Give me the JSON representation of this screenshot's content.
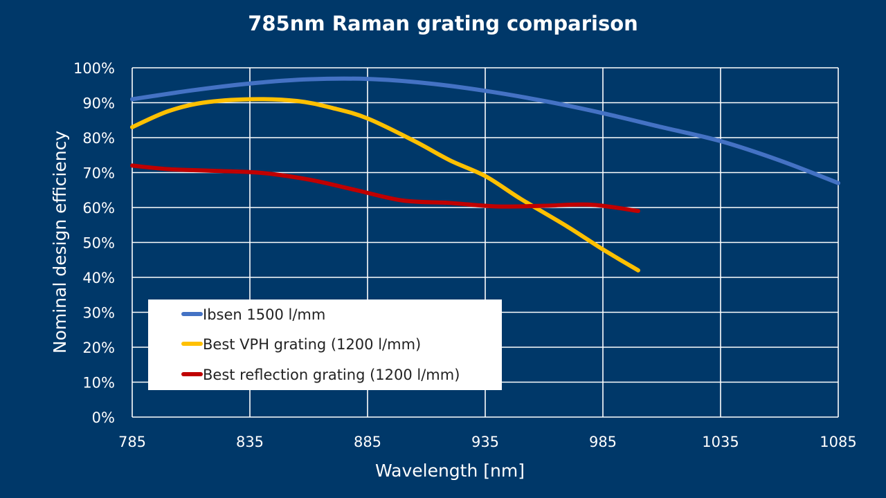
{
  "chart_data": {
    "type": "line",
    "title": "785nm Raman grating comparison",
    "xlabel": "Wavelength [nm]",
    "ylabel": "Nominal design efficiency",
    "xlim": [
      785,
      1085
    ],
    "ylim": [
      0,
      100
    ],
    "x_ticks": [
      785,
      835,
      885,
      935,
      985,
      1035,
      1085
    ],
    "x_tick_labels": [
      "785",
      "835",
      "885",
      "935",
      "985",
      "1035",
      "1085"
    ],
    "y_ticks": [
      0,
      10,
      20,
      30,
      40,
      50,
      60,
      70,
      80,
      90,
      100
    ],
    "y_tick_labels": [
      "0%",
      "10%",
      "20%",
      "30%",
      "40%",
      "50%",
      "60%",
      "70%",
      "80%",
      "90%",
      "100%"
    ],
    "grid": true,
    "legend_position": "bottom-left",
    "series": [
      {
        "name": "Ibsen 1500 l/mm",
        "color": "#4472C4",
        "x": [
          785,
          810,
          835,
          860,
          885,
          910,
          935,
          960,
          985,
          1010,
          1035,
          1060,
          1085
        ],
        "y": [
          91,
          93.5,
          95.5,
          96.7,
          96.8,
          95.6,
          93.4,
          90.5,
          87,
          83,
          79,
          73.5,
          67
        ]
      },
      {
        "name": "Best VPH grating (1200 l/mm)",
        "color": "#FFC000",
        "x": [
          785,
          800,
          815,
          835,
          855,
          870,
          885,
          905,
          920,
          935,
          950,
          970,
          985,
          1000
        ],
        "y": [
          83,
          87.5,
          90,
          91,
          90.5,
          88.5,
          85.5,
          79,
          73.5,
          69,
          62.5,
          54.5,
          48,
          42
        ]
      },
      {
        "name": "Best reflection grating (1200 l/mm)",
        "color": "#C00000",
        "x": [
          785,
          800,
          820,
          840,
          860,
          880,
          900,
          920,
          940,
          960,
          980,
          1000
        ],
        "y": [
          72,
          71,
          70.5,
          69.9,
          68,
          65,
          62,
          61.3,
          60.3,
          60.5,
          60.8,
          59
        ]
      }
    ]
  }
}
